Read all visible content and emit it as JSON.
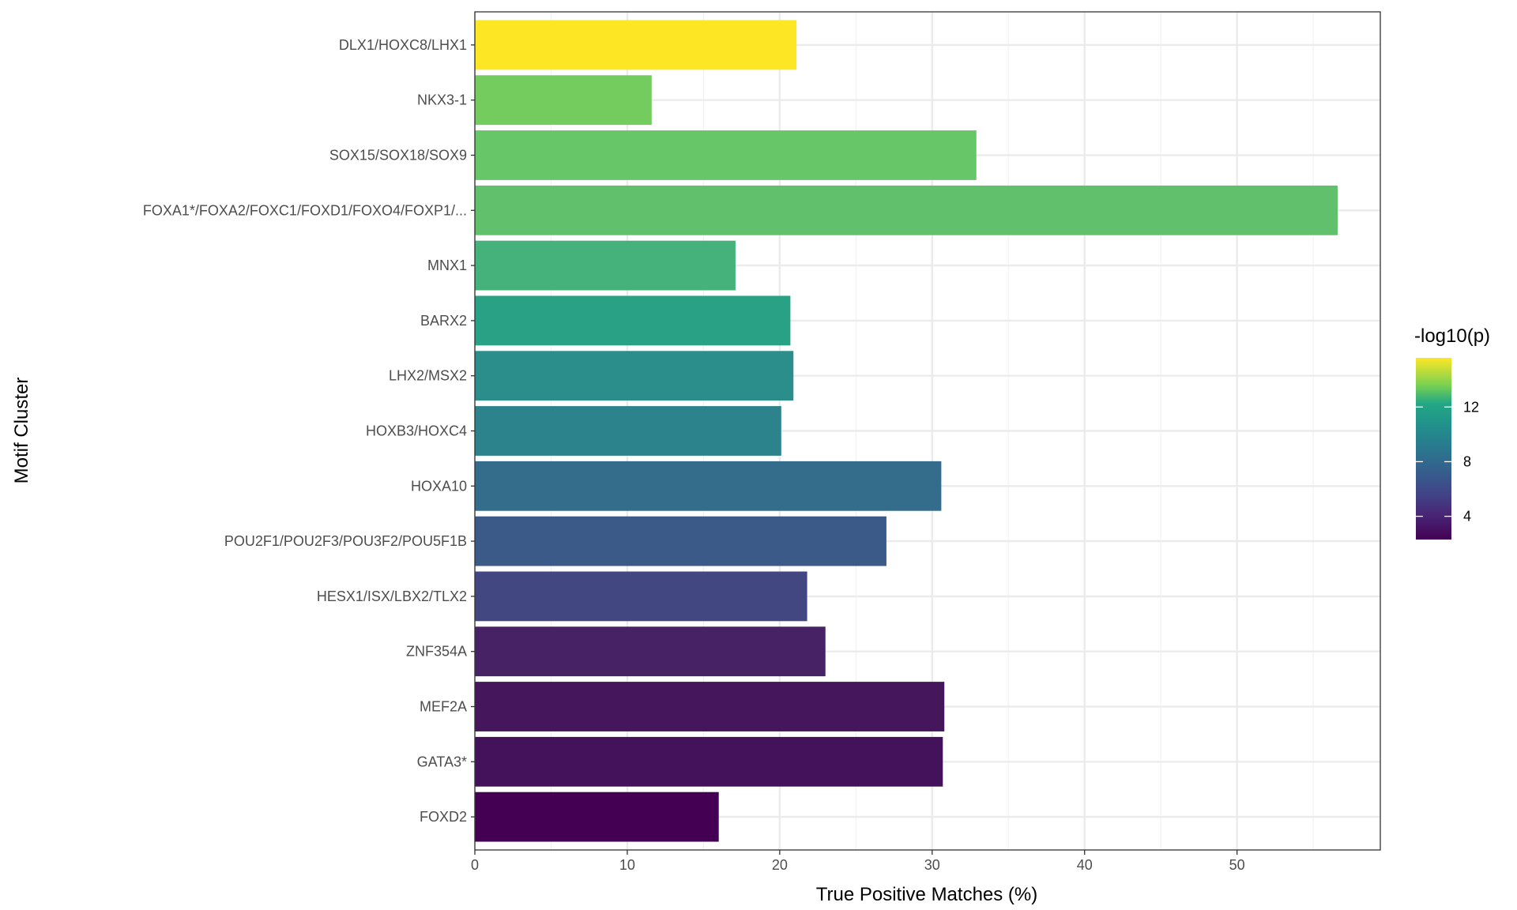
{
  "chart_data": {
    "type": "bar",
    "orientation": "horizontal",
    "xlabel": "True Positive Matches (%)",
    "ylabel": "Motif Cluster",
    "xlim": [
      0,
      59.4
    ],
    "xticks": [
      0,
      10,
      20,
      30,
      40,
      50
    ],
    "grid": true,
    "categories": [
      "DLX1/HOXC8/LHX1",
      "NKX3-1",
      "SOX15/SOX18/SOX9",
      "FOXA1*/FOXA2/FOXC1/FOXD1/FOXO4/FOXP1/...",
      "MNX1",
      "BARX2",
      "LHX2/MSX2",
      "HOXB3/HOXC4",
      "HOXA10",
      "POU2F1/POU2F3/POU3F2/POU5F1B",
      "HESX1/ISX/LBX2/TLX2",
      "ZNF354A",
      "MEF2A",
      "GATA3*",
      "FOXD2"
    ],
    "values": [
      21.1,
      11.6,
      32.9,
      56.6,
      17.1,
      20.7,
      20.9,
      20.1,
      30.6,
      27.0,
      21.8,
      23.0,
      30.8,
      30.7,
      16.0
    ],
    "color_values": [
      15.6,
      13.7,
      13.2,
      12.9,
      11.8,
      10.2,
      9.0,
      8.4,
      7.0,
      5.5,
      4.8,
      3.6,
      3.0,
      2.8,
      2.3
    ],
    "colors": [
      "#fde725",
      "#75cc5e",
      "#67c667",
      "#61c06c",
      "#45b27c",
      "#28a185",
      "#2c8e8a",
      "#2d838c",
      "#346d8b",
      "#3c5a88",
      "#424781",
      "#472264",
      "#45165b",
      "#44125a",
      "#440154"
    ],
    "legend": {
      "title": "-log10(p)",
      "position": "right",
      "range": [
        2.3,
        15.6
      ],
      "ticks": [
        "4",
        "8",
        "12"
      ],
      "tick_values": [
        4,
        8,
        12
      ],
      "palette": "viridis"
    }
  }
}
